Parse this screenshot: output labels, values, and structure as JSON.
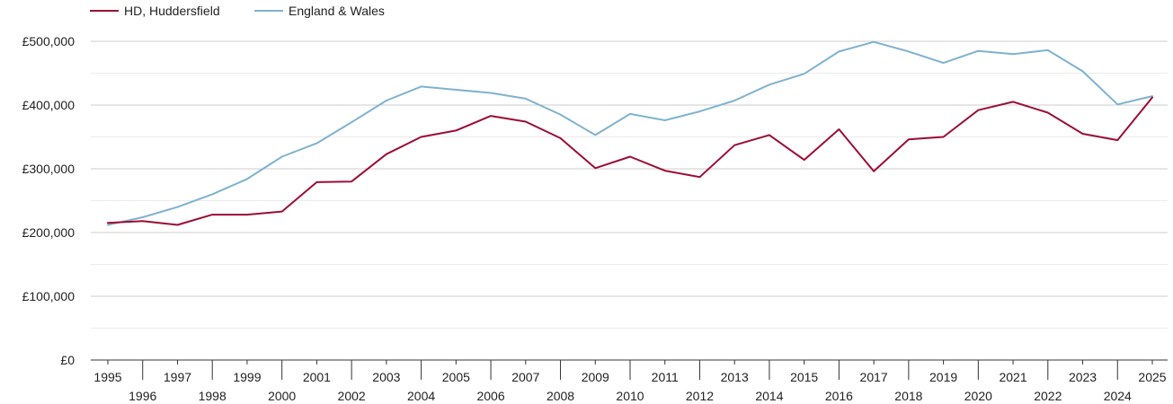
{
  "chart_data": {
    "type": "line",
    "title": "",
    "xlabel": "",
    "ylabel": "",
    "x": [
      1995,
      1996,
      1997,
      1998,
      1999,
      2000,
      2001,
      2002,
      2003,
      2004,
      2005,
      2006,
      2007,
      2008,
      2009,
      2010,
      2011,
      2012,
      2013,
      2014,
      2015,
      2016,
      2017,
      2018,
      2019,
      2020,
      2021,
      2022,
      2023,
      2024,
      2025
    ],
    "x_tick_labels": [
      "1995",
      "1996",
      "1997",
      "1998",
      "1999",
      "2000",
      "2001",
      "2002",
      "2003",
      "2004",
      "2005",
      "2006",
      "2007",
      "2008",
      "2009",
      "2010",
      "2011",
      "2012",
      "2013",
      "2014",
      "2015",
      "2016",
      "2017",
      "2018",
      "2019",
      "2020",
      "2021",
      "2022",
      "2023",
      "2024",
      "2025"
    ],
    "y_ticks": [
      0,
      100000,
      200000,
      300000,
      400000,
      500000
    ],
    "y_tick_labels": [
      "£0",
      "£100,000",
      "£200,000",
      "£300,000",
      "£400,000",
      "£500,000"
    ],
    "ylim": [
      0,
      500000
    ],
    "grid": true,
    "legend_position": "top-left",
    "series": [
      {
        "name": "HD, Huddersfield",
        "color": "#9b0d34",
        "values": [
          215000,
          218000,
          212000,
          228000,
          228000,
          233000,
          279000,
          280000,
          323000,
          350000,
          360000,
          383000,
          374000,
          348000,
          301000,
          319000,
          297000,
          287000,
          337000,
          353000,
          314000,
          362000,
          296000,
          346000,
          350000,
          392000,
          405000,
          388000,
          355000,
          345000,
          412000
        ]
      },
      {
        "name": "England & Wales",
        "color": "#7fb2cf",
        "values": [
          212000,
          224000,
          240000,
          260000,
          284000,
          319000,
          340000,
          373000,
          407000,
          429000,
          424000,
          419000,
          410000,
          385000,
          353000,
          386000,
          376000,
          390000,
          407000,
          432000,
          449000,
          484000,
          499000,
          484000,
          466000,
          485000,
          480000,
          486000,
          453000,
          401000,
          414000
        ]
      }
    ]
  }
}
